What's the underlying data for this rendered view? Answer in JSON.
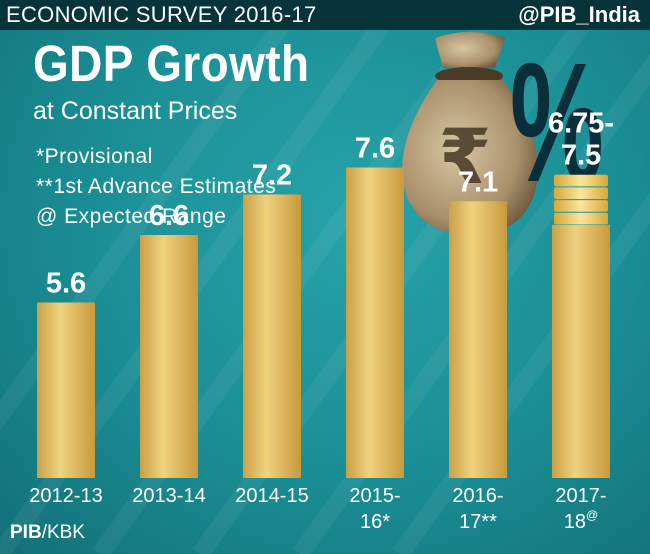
{
  "header": {
    "survey": "ECONOMIC SURVEY 2016-17",
    "handle": "@PIB_India"
  },
  "title": "GDP Growth",
  "subtitle": "at Constant Prices",
  "notes": [
    "*Provisional",
    "**1st Advance Estimates",
    "@ Expected Range"
  ],
  "percent_symbol": "%",
  "rupee_symbol": "₹",
  "credit": {
    "org": "PIB",
    "suffix": "/KBK"
  },
  "colors": {
    "background": "#1e8a92",
    "bar": "#e3bd5c",
    "text": "#ffffff",
    "percent": "#0a2f3a"
  },
  "chart_data": {
    "type": "bar",
    "categories": [
      "2012-13",
      "2013-14",
      "2014-15",
      "2015-16*",
      "2016-17**",
      "2017-18@"
    ],
    "category_labels": [
      [
        "2012-13"
      ],
      [
        "2013-14"
      ],
      [
        "2014-15"
      ],
      [
        "2015-",
        "16*"
      ],
      [
        "2016-",
        "17**"
      ],
      [
        "2017-",
        "18@"
      ]
    ],
    "values": [
      5.6,
      6.6,
      7.2,
      7.6,
      7.1,
      7.5
    ],
    "range_low": [
      null,
      null,
      null,
      null,
      null,
      6.75
    ],
    "data_labels": [
      [
        "5.6"
      ],
      [
        "6.6"
      ],
      [
        "7.2"
      ],
      [
        "7.6"
      ],
      [
        "7.1"
      ],
      [
        "6.75-",
        "7.5"
      ]
    ],
    "ylim": [
      3.0,
      7.8
    ],
    "grid": false,
    "xlabel": "",
    "ylabel": ""
  }
}
